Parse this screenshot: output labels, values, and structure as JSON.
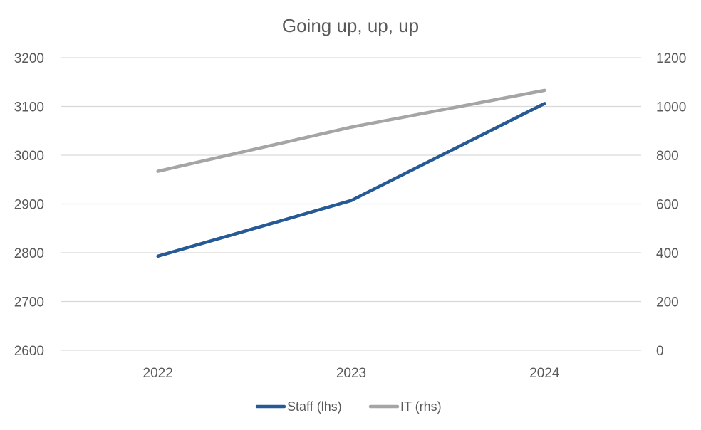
{
  "chart_data": {
    "type": "line",
    "title": "Going up, up, up",
    "xlabel": "",
    "ylabel": "",
    "categories": [
      "2022",
      "2023",
      "2024"
    ],
    "y_left": {
      "min": 2600,
      "max": 3200,
      "step": 100,
      "ticks": [
        "2600",
        "2700",
        "2800",
        "2900",
        "3000",
        "3100",
        "3200"
      ]
    },
    "y_right": {
      "min": 0,
      "max": 1200,
      "step": 200,
      "ticks": [
        "0",
        "200",
        "400",
        "600",
        "800",
        "1000",
        "1200"
      ]
    },
    "grid": true,
    "legend_position": "bottom",
    "series": [
      {
        "name": "Staff (lhs)",
        "axis": "left",
        "color": "#265a97",
        "values": [
          2793,
          2907,
          3106
        ]
      },
      {
        "name": "IT (rhs)",
        "axis": "right",
        "color": "#a5a5a5",
        "values": [
          734,
          915,
          1066
        ]
      }
    ]
  }
}
